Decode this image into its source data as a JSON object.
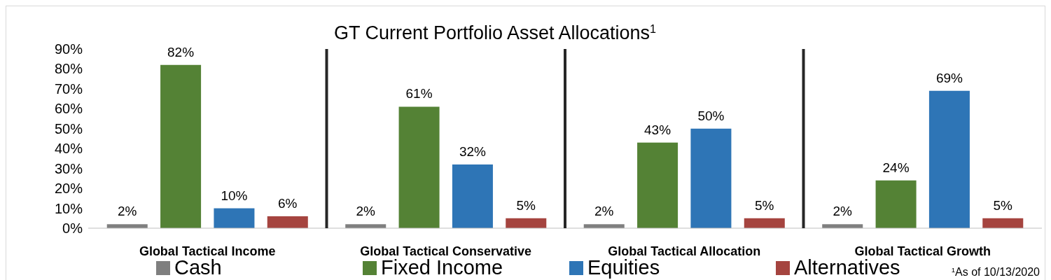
{
  "chart_data": {
    "type": "bar",
    "title": "GT Current Portfolio Asset Allocations$^{1}$",
    "categories": [
      "Global Tactical Income",
      "Global Tactical Conservative",
      "Global Tactical Allocation",
      "Global Tactical Growth"
    ],
    "series": [
      {
        "name": "Cash",
        "color": "#7f7f7f",
        "values": [
          2,
          2,
          2,
          2
        ]
      },
      {
        "name": "Fixed Income",
        "color": "#548235",
        "values": [
          82,
          61,
          43,
          24
        ]
      },
      {
        "name": "Equities",
        "color": "#2e75b6",
        "values": [
          10,
          32,
          50,
          69
        ]
      },
      {
        "name": "Alternatives",
        "color": "#a5443f",
        "values": [
          6,
          5,
          5,
          5
        ]
      }
    ],
    "ylim": [
      0,
      90
    ],
    "yticks": [
      {
        "value": 0,
        "label": "0%"
      },
      {
        "value": 10,
        "label": "10%"
      },
      {
        "value": 20,
        "label": "20%"
      },
      {
        "value": 30,
        "label": "30%"
      },
      {
        "value": 40,
        "label": "40%"
      },
      {
        "value": 50,
        "label": "50%"
      },
      {
        "value": 60,
        "label": "60%"
      },
      {
        "value": 70,
        "label": "70%"
      },
      {
        "value": 80,
        "label": "80%"
      },
      {
        "value": 90,
        "label": "90%"
      }
    ],
    "value_labels": [
      [
        "2%",
        "2%",
        "2%",
        "2%"
      ],
      [
        "82%",
        "61%",
        "43%",
        "24%"
      ],
      [
        "10%",
        "32%",
        "50%",
        "69%"
      ],
      [
        "6%",
        "5%",
        "5%",
        "5%"
      ]
    ],
    "legend": "bottom",
    "grid": false,
    "annotations": [
      "$^{1}$As of 10/13/2020"
    ]
  }
}
